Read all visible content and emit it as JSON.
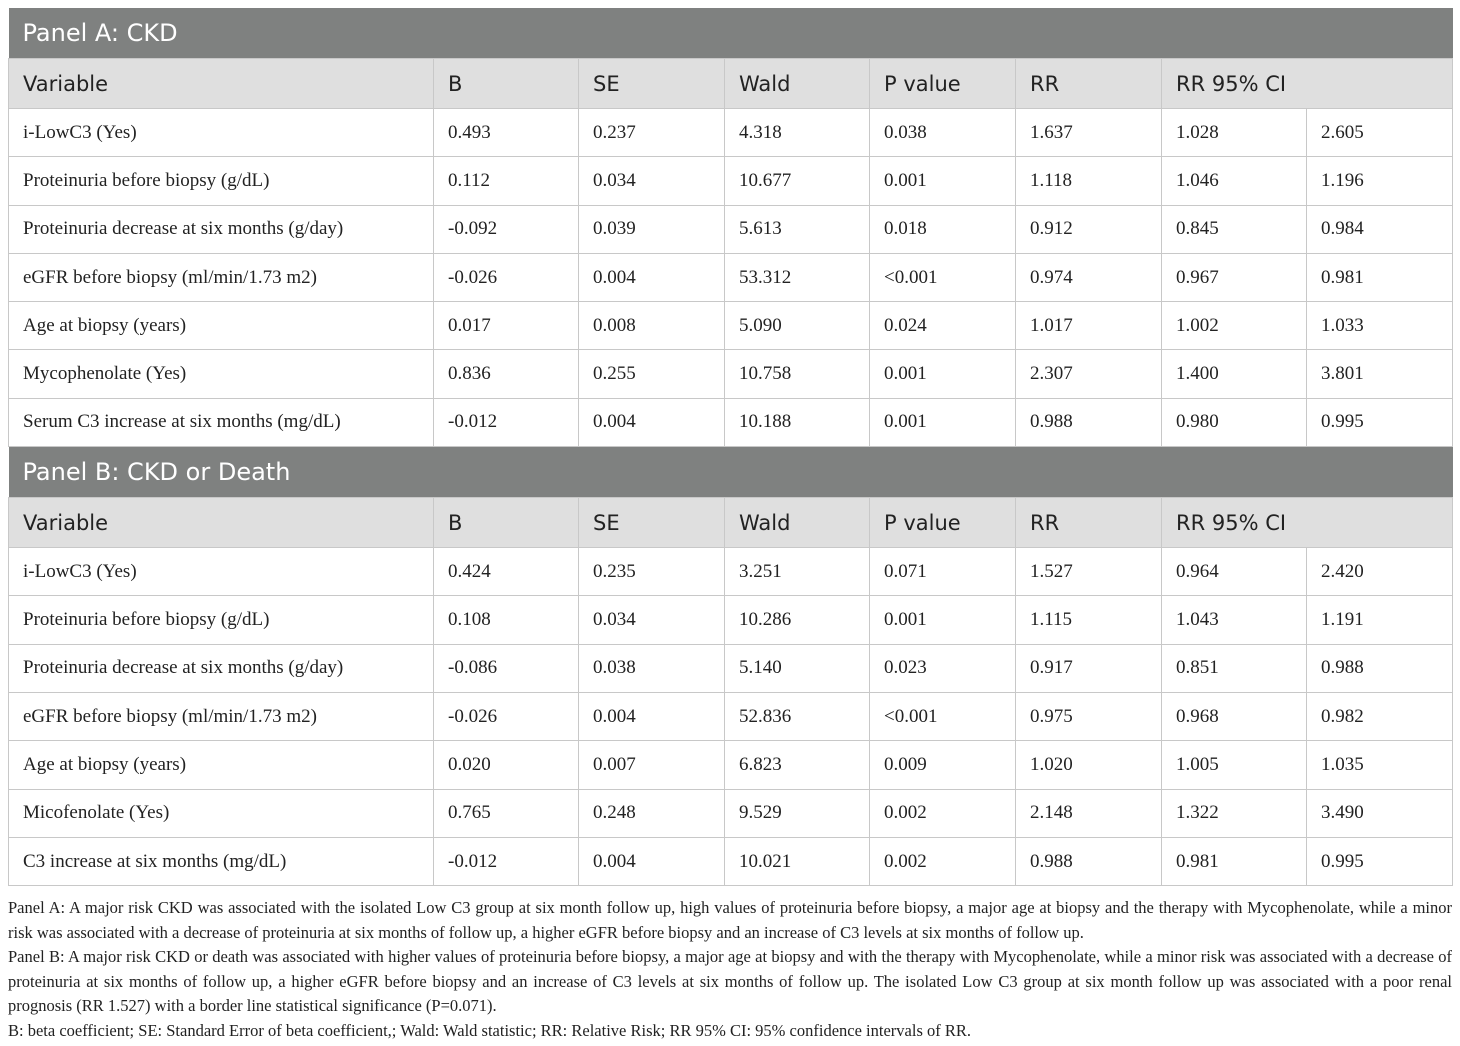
{
  "columns": [
    "Variable",
    "B",
    "SE",
    "Wald",
    "P value",
    "RR",
    "RR 95% CI"
  ],
  "panels": [
    {
      "title": "Panel A: CKD",
      "rows": [
        [
          "i-LowC3 (Yes)",
          "0.493",
          "0.237",
          "4.318",
          "0.038",
          "1.637",
          "1.028",
          "2.605"
        ],
        [
          "Proteinuria before biopsy (g/dL)",
          "0.112",
          "0.034",
          "10.677",
          "0.001",
          "1.118",
          "1.046",
          "1.196"
        ],
        [
          "Proteinuria decrease at six months (g/day)",
          "-0.092",
          "0.039",
          "5.613",
          "0.018",
          "0.912",
          "0.845",
          "0.984"
        ],
        [
          "eGFR before biopsy (ml/min/1.73 m2)",
          "-0.026",
          "0.004",
          "53.312",
          "<0.001",
          "0.974",
          "0.967",
          "0.981"
        ],
        [
          "Age at biopsy (years)",
          "0.017",
          "0.008",
          "5.090",
          "0.024",
          "1.017",
          "1.002",
          "1.033"
        ],
        [
          "Mycophenolate (Yes)",
          "0.836",
          "0.255",
          "10.758",
          "0.001",
          "2.307",
          "1.400",
          "3.801"
        ],
        [
          "Serum C3 increase at six months (mg/dL)",
          "-0.012",
          "0.004",
          "10.188",
          "0.001",
          "0.988",
          "0.980",
          "0.995"
        ]
      ]
    },
    {
      "title": "Panel B: CKD or Death",
      "rows": [
        [
          "i-LowC3 (Yes)",
          "0.424",
          "0.235",
          "3.251",
          "0.071",
          "1.527",
          "0.964",
          "2.420"
        ],
        [
          "Proteinuria before biopsy (g/dL)",
          "0.108",
          "0.034",
          "10.286",
          "0.001",
          "1.115",
          "1.043",
          "1.191"
        ],
        [
          "Proteinuria decrease at six months (g/day)",
          "-0.086",
          "0.038",
          "5.140",
          "0.023",
          "0.917",
          "0.851",
          "0.988"
        ],
        [
          "eGFR before biopsy (ml/min/1.73 m2)",
          "-0.026",
          "0.004",
          "52.836",
          "<0.001",
          "0.975",
          "0.968",
          "0.982"
        ],
        [
          "Age at biopsy (years)",
          "0.020",
          "0.007",
          "6.823",
          "0.009",
          "1.020",
          "1.005",
          "1.035"
        ],
        [
          "Micofenolate (Yes)",
          "0.765",
          "0.248",
          "9.529",
          "0.002",
          "2.148",
          "1.322",
          "3.490"
        ],
        [
          "C3 increase at six months (mg/dL)",
          "-0.012",
          "0.004",
          "10.021",
          "0.002",
          "0.988",
          "0.981",
          "0.995"
        ]
      ]
    }
  ],
  "notes": [
    "Panel A: A major risk CKD was associated with the isolated Low C3 group at six month follow up, high values of proteinuria before biopsy, a major age at biopsy and the therapy with Mycophenolate, while a minor risk was associated with a decrease of proteinuria at six months of follow up, a higher eGFR before biopsy and an increase of C3 levels at six months of follow up.",
    "Panel B: A major risk CKD or death was associated with higher values of proteinuria before biopsy, a major age at biopsy and with the therapy with Mycophenolate, while a minor risk was associated with a decrease of proteinuria at six months of follow up, a higher eGFR before biopsy and an increase of C3 levels at six months of follow up. The isolated Low C3 group at six month follow up was associated with a poor renal prognosis (RR 1.527) with a border line statistical significance (P=0.071).",
    "B: beta coefficient; SE: Standard Error of beta coefficient,; Wald: Wald statistic; RR: Relative Risk; RR 95% CI: 95% confidence intervals of RR."
  ]
}
